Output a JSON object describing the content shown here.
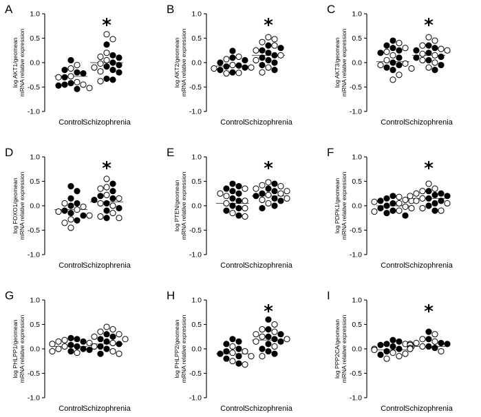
{
  "figure": {
    "y_ticks": [
      "1.0",
      "0.5",
      "0.0",
      "-0.5",
      "-1.0"
    ],
    "categories": [
      "Control",
      "Schizophrenia"
    ]
  },
  "chart_data": [
    {
      "type": "scatter",
      "panel": "A",
      "ylabel_line1": "log AKT1/geomean",
      "ylabel_line2": "mRNA relative expression",
      "ylim": [
        -1,
        1
      ],
      "categories": [
        "Control",
        "Schizophrenia"
      ],
      "significant": true,
      "star": "*",
      "series": [
        {
          "name": "Control",
          "mean": -0.28,
          "filled": [
            -0.2,
            -0.3,
            -0.42,
            -0.47,
            -0.54,
            -0.45,
            -0.15,
            -0.22,
            0.05
          ],
          "open": [
            -0.05,
            -0.12,
            -0.28,
            -0.45,
            -0.52,
            -0.4,
            -0.3
          ]
        },
        {
          "name": "Schizophrenia",
          "mean": 0.0,
          "filled": [
            0.37,
            0.15,
            0.1,
            0.0,
            -0.08,
            -0.15,
            -0.2,
            -0.35,
            -0.33,
            -0.05
          ],
          "open": [
            0.58,
            0.48,
            0.2,
            0.05,
            -0.02,
            -0.18,
            -0.38,
            0.12,
            -0.1
          ]
        }
      ]
    },
    {
      "type": "scatter",
      "panel": "B",
      "ylabel_line1": "log AKT2/geomean",
      "ylabel_line2": "mRNA relative expression",
      "ylim": [
        -1,
        1
      ],
      "categories": [
        "Control",
        "Schizophrenia"
      ],
      "significant": true,
      "star": "*",
      "series": [
        {
          "name": "Control",
          "mean": -0.07,
          "filled": [
            0.0,
            -0.1,
            -0.15,
            0.1,
            -0.08,
            0.05,
            -0.2,
            0.24,
            -0.06
          ],
          "open": [
            -0.05,
            -0.12,
            -0.21,
            0.07,
            -0.22,
            0.12,
            -0.1
          ]
        },
        {
          "name": "Schizophrenia",
          "mean": 0.15,
          "filled": [
            0.35,
            0.05,
            0.15,
            -0.05,
            0.2,
            0.1,
            -0.15,
            0.0,
            0.25,
            0.3
          ],
          "open": [
            0.52,
            0.42,
            0.15,
            -0.1,
            0.35,
            0.05,
            -0.2,
            0.25,
            0.48
          ]
        }
      ]
    },
    {
      "type": "scatter",
      "panel": "C",
      "ylabel_line1": "log AKT3/geomean",
      "ylabel_line2": "mRNA relative expression",
      "ylim": [
        -1,
        1
      ],
      "categories": [
        "Control",
        "Schizophrenia"
      ],
      "significant": true,
      "star": "*",
      "series": [
        {
          "name": "Control",
          "mean": 0.02,
          "filled": [
            0.45,
            0.3,
            0.2,
            0.1,
            -0.05,
            -0.15,
            0.35,
            -0.1,
            0.25,
            0.0
          ],
          "open": [
            0.4,
            -0.02,
            -0.25,
            -0.35,
            0.05,
            -0.12,
            0.15,
            0.3,
            -0.05,
            0.22
          ]
        },
        {
          "name": "Schizophrenia",
          "mean": 0.15,
          "filled": [
            0.35,
            0.2,
            0.05,
            -0.15,
            0.12,
            0.25,
            0.3,
            0.1,
            -0.05
          ],
          "open": [
            0.52,
            0.45,
            0.25,
            0.15,
            0.0,
            -0.1,
            0.18,
            0.35,
            0.28,
            0.05
          ]
        }
      ]
    },
    {
      "type": "scatter",
      "panel": "D",
      "ylabel_line1": "log FOXO1/geomean",
      "ylabel_line2": "mRNA relative expression",
      "ylim": [
        -1,
        1
      ],
      "categories": [
        "Control",
        "Schizophrenia"
      ],
      "significant": true,
      "star": "*",
      "series": [
        {
          "name": "Control",
          "mean": -0.08,
          "filled": [
            0.4,
            0.3,
            0.15,
            0.05,
            -0.1,
            -0.2,
            -0.3,
            0.0,
            -0.15
          ],
          "open": [
            -0.02,
            -0.12,
            -0.2,
            -0.35,
            -0.45,
            -0.08,
            0.05,
            -0.28
          ]
        },
        {
          "name": "Schizophrenia",
          "mean": 0.08,
          "filled": [
            0.45,
            0.2,
            0.12,
            0.05,
            -0.1,
            -0.25,
            0.3,
            0.15,
            -0.05
          ],
          "open": [
            0.55,
            0.35,
            0.22,
            0.0,
            -0.15,
            -0.22,
            0.15,
            0.38,
            0.05,
            -0.25
          ]
        }
      ]
    },
    {
      "type": "scatter",
      "panel": "E",
      "ylabel_line1": "log PTEN/geomean",
      "ylabel_line2": "mRNA relative expression",
      "ylim": [
        -1,
        1
      ],
      "categories": [
        "Control",
        "Schizophrenia"
      ],
      "significant": true,
      "star": "*",
      "series": [
        {
          "name": "Control",
          "mean": 0.05,
          "filled": [
            0.45,
            0.35,
            0.25,
            0.1,
            0.0,
            -0.1,
            -0.2,
            0.3,
            0.15,
            -0.05,
            0.4
          ],
          "open": [
            0.2,
            0.05,
            -0.15,
            -0.22,
            0.1,
            -0.05,
            0.25,
            0.35
          ]
        },
        {
          "name": "Schizophrenia",
          "mean": 0.2,
          "filled": [
            0.45,
            0.35,
            0.25,
            0.1,
            0.0,
            0.2,
            -0.05,
            0.3,
            0.15
          ],
          "open": [
            0.48,
            0.4,
            0.3,
            0.22,
            0.12,
            0.05,
            0.35,
            0.15,
            0.42,
            0.25
          ]
        }
      ]
    },
    {
      "type": "scatter",
      "panel": "F",
      "ylabel_line1": "log PDPK1/geomean",
      "ylabel_line2": "mRNA relative expression",
      "ylim": [
        -1,
        1
      ],
      "categories": [
        "Control",
        "Schizophrenia"
      ],
      "significant": true,
      "star": "*",
      "series": [
        {
          "name": "Control",
          "mean": 0.0,
          "filled": [
            0.2,
            0.1,
            0.0,
            -0.1,
            -0.2,
            0.15,
            -0.05,
            0.05,
            -0.15
          ],
          "open": [
            0.18,
            0.08,
            -0.02,
            -0.1,
            0.05,
            0.12,
            -0.05,
            -0.12,
            0.1
          ]
        },
        {
          "name": "Schizophrenia",
          "mean": 0.15,
          "filled": [
            0.3,
            0.2,
            0.1,
            0.0,
            -0.1,
            0.25,
            0.15,
            0.05,
            0.22
          ],
          "open": [
            0.45,
            0.3,
            0.2,
            0.1,
            -0.05,
            0.25,
            0.15,
            0.35,
            0.05,
            -0.1
          ]
        }
      ]
    },
    {
      "type": "scatter",
      "panel": "G",
      "ylabel_line1": "log PHLPP1/geomean",
      "ylabel_line2": "mRNA relative expression",
      "ylim": [
        -1,
        1
      ],
      "categories": [
        "Control",
        "Schizophrenia"
      ],
      "significant": false,
      "star": "",
      "series": [
        {
          "name": "Control",
          "mean": 0.05,
          "filled": [
            0.2,
            0.1,
            0.0,
            -0.05,
            0.15,
            0.05,
            0.22,
            -0.02,
            0.08
          ],
          "open": [
            0.12,
            0.05,
            -0.05,
            0.15,
            0.0,
            0.18,
            -0.08,
            0.1
          ]
        },
        {
          "name": "Schizophrenia",
          "mean": 0.1,
          "filled": [
            0.3,
            0.2,
            0.1,
            0.0,
            -0.1,
            0.25,
            0.15,
            0.05
          ],
          "open": [
            0.45,
            0.4,
            0.3,
            0.2,
            0.05,
            -0.1,
            0.35,
            0.12,
            0.25,
            -0.05
          ]
        }
      ]
    },
    {
      "type": "scatter",
      "panel": "H",
      "ylabel_line1": "log PHLPP2/geomean",
      "ylabel_line2": "mRNA relative expression",
      "ylim": [
        -1,
        1
      ],
      "categories": [
        "Control",
        "Schizophrenia"
      ],
      "significant": true,
      "star": "*",
      "series": [
        {
          "name": "Control",
          "mean": -0.1,
          "filled": [
            0.2,
            0.1,
            0.0,
            -0.1,
            -0.2,
            -0.3,
            0.15,
            -0.05,
            -0.15
          ],
          "open": [
            -0.05,
            -0.15,
            -0.25,
            -0.32,
            0.05,
            -0.08
          ]
        },
        {
          "name": "Schizophrenia",
          "mean": 0.18,
          "filled": [
            0.6,
            0.4,
            0.3,
            0.2,
            0.1,
            0.0,
            -0.1,
            0.25,
            0.15,
            -0.05
          ],
          "open": [
            0.5,
            0.35,
            0.25,
            0.15,
            0.05,
            -0.15,
            0.4,
            0.3,
            0.2
          ]
        }
      ]
    },
    {
      "type": "scatter",
      "panel": "I",
      "ylabel_line1": "log PPP2CA/geomean",
      "ylabel_line2": "mRNA relative expression",
      "ylim": [
        -1,
        1
      ],
      "categories": [
        "Control",
        "Schizophrenia"
      ],
      "significant": true,
      "star": "*",
      "series": [
        {
          "name": "Control",
          "mean": -0.02,
          "filled": [
            0.15,
            0.1,
            0.05,
            0.0,
            -0.05,
            -0.12,
            0.18,
            0.08,
            -0.02
          ],
          "open": [
            0.05,
            -0.02,
            -0.1,
            -0.2,
            0.1,
            -0.15,
            0.0,
            -0.08
          ]
        },
        {
          "name": "Schizophrenia",
          "mean": 0.05,
          "filled": [
            0.35,
            0.2,
            0.1,
            0.05,
            0.0,
            0.08,
            0.02,
            0.12
          ],
          "open": [
            0.3,
            0.2,
            0.1,
            0.05,
            0.0,
            -0.05,
            0.08,
            0.15,
            0.02,
            0.12
          ]
        }
      ]
    }
  ]
}
